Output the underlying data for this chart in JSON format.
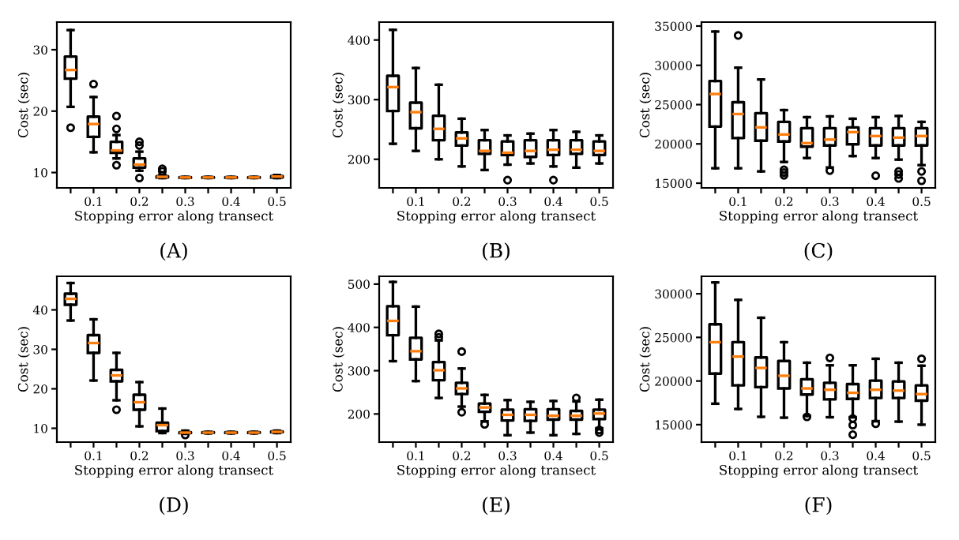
{
  "chart_data": [
    {
      "type": "box",
      "title": "(A)",
      "xlabel": "Stopping error along transect",
      "ylabel": "Cost (sec)",
      "categories": [
        null,
        "0.1",
        null,
        "0.2",
        null,
        "0.3",
        null,
        "0.4",
        null,
        "0.5"
      ],
      "ylim": [
        7.5,
        34.5
      ],
      "yticks": [
        10,
        20,
        30
      ],
      "boxes": [
        {
          "low": 20.7,
          "q1": 25.3,
          "median": 26.7,
          "q3": 28.9,
          "high": 33.2,
          "outliers": [
            17.3
          ]
        },
        {
          "low": 13.3,
          "q1": 15.8,
          "median": 17.9,
          "q3": 19.1,
          "high": 22.3,
          "outliers": [
            24.4
          ]
        },
        {
          "low": 12.3,
          "q1": 13.2,
          "median": 13.6,
          "q3": 15.0,
          "high": 16.1,
          "outliers": [
            19.2,
            17.1,
            11.2
          ]
        },
        {
          "low": 10.3,
          "q1": 10.8,
          "median": 11.3,
          "q3": 12.3,
          "high": 13.4,
          "outliers": [
            15.0,
            14.4,
            9.1
          ]
        },
        {
          "low": 9.1,
          "q1": 9.2,
          "median": 9.3,
          "q3": 9.4,
          "high": 9.6,
          "outliers": [
            10.6,
            10.2
          ]
        },
        {
          "low": 9.1,
          "q1": 9.15,
          "median": 9.2,
          "q3": 9.25,
          "high": 9.3
        },
        {
          "low": 9.1,
          "q1": 9.15,
          "median": 9.2,
          "q3": 9.25,
          "high": 9.3
        },
        {
          "low": 9.1,
          "q1": 9.15,
          "median": 9.2,
          "q3": 9.25,
          "high": 9.3
        },
        {
          "low": 9.1,
          "q1": 9.15,
          "median": 9.2,
          "q3": 9.25,
          "high": 9.3
        },
        {
          "low": 9.1,
          "q1": 9.2,
          "median": 9.35,
          "q3": 9.45,
          "high": 9.6
        }
      ]
    },
    {
      "type": "box",
      "title": "(B)",
      "xlabel": "Stopping error along transect",
      "ylabel": "Cost (sec)",
      "categories": [
        null,
        "0.1",
        null,
        "0.2",
        null,
        "0.3",
        null,
        "0.4",
        null,
        "0.5"
      ],
      "ylim": [
        152,
        430
      ],
      "yticks": [
        200,
        300,
        400
      ],
      "boxes": [
        {
          "low": 226,
          "q1": 281,
          "median": 321,
          "q3": 340,
          "high": 417
        },
        {
          "low": 214,
          "q1": 252,
          "median": 279,
          "q3": 295,
          "high": 353
        },
        {
          "low": 200,
          "q1": 232,
          "median": 251,
          "q3": 273,
          "high": 325
        },
        {
          "low": 188,
          "q1": 223,
          "median": 235,
          "q3": 245,
          "high": 268
        },
        {
          "low": 182,
          "q1": 209,
          "median": 214,
          "q3": 232,
          "high": 249
        },
        {
          "low": 191,
          "q1": 207,
          "median": 211,
          "q3": 230,
          "high": 240,
          "outliers": [
            165
          ]
        },
        {
          "low": 193,
          "q1": 204,
          "median": 214,
          "q3": 232,
          "high": 243
        },
        {
          "low": 188,
          "q1": 207,
          "median": 216,
          "q3": 232,
          "high": 249,
          "outliers": [
            165
          ]
        },
        {
          "low": 186,
          "q1": 209,
          "median": 216,
          "q3": 232,
          "high": 246
        },
        {
          "low": 193,
          "q1": 207,
          "median": 214,
          "q3": 230,
          "high": 240
        }
      ]
    },
    {
      "type": "box",
      "title": "(C)",
      "xlabel": "Stopping error along transect",
      "ylabel": "Cost (sec)",
      "categories": [
        null,
        "0.1",
        null,
        "0.2",
        null,
        "0.3",
        null,
        "0.4",
        null,
        "0.5"
      ],
      "ylim": [
        14400,
        35500
      ],
      "yticks": [
        15000,
        20000,
        25000,
        30000,
        35000
      ],
      "boxes": [
        {
          "low": 16900,
          "q1": 22200,
          "median": 26350,
          "q3": 28000,
          "high": 34300
        },
        {
          "low": 16900,
          "q1": 20750,
          "median": 23800,
          "q3": 25300,
          "high": 29700,
          "outliers": [
            33800
          ]
        },
        {
          "low": 16500,
          "q1": 20400,
          "median": 22100,
          "q3": 23900,
          "high": 28200
        },
        {
          "low": 17700,
          "q1": 20300,
          "median": 21200,
          "q3": 22800,
          "high": 24300,
          "outliers": [
            16700,
            16350,
            16000
          ]
        },
        {
          "low": 18200,
          "q1": 19650,
          "median": 20100,
          "q3": 22000,
          "high": 23400
        },
        {
          "low": 17000,
          "q1": 19800,
          "median": 20550,
          "q3": 22000,
          "high": 23500,
          "outliers": [
            16600
          ]
        },
        {
          "low": 18450,
          "q1": 19950,
          "median": 21500,
          "q3": 22100,
          "high": 23200
        },
        {
          "low": 18200,
          "q1": 19800,
          "median": 21000,
          "q3": 22000,
          "high": 23400,
          "outliers": [
            15950
          ]
        },
        {
          "low": 18000,
          "q1": 19800,
          "median": 20800,
          "q3": 22000,
          "high": 23550,
          "outliers": [
            16500,
            16100,
            15600
          ]
        },
        {
          "low": 17300,
          "q1": 19800,
          "median": 21000,
          "q3": 22000,
          "high": 22800,
          "outliers": [
            16500,
            15300
          ]
        }
      ]
    },
    {
      "type": "box",
      "title": "(D)",
      "xlabel": "Stopping error along transect",
      "ylabel": "Cost (sec)",
      "categories": [
        null,
        "0.1",
        null,
        "0.2",
        null,
        "0.3",
        null,
        "0.4",
        null,
        "0.5"
      ],
      "ylim": [
        6.5,
        48.5
      ],
      "yticks": [
        10,
        20,
        30,
        40
      ],
      "boxes": [
        {
          "low": 37.3,
          "q1": 41.3,
          "median": 42.8,
          "q3": 44.1,
          "high": 46.8
        },
        {
          "low": 22.1,
          "q1": 29.1,
          "median": 31.6,
          "q3": 33.6,
          "high": 37.6
        },
        {
          "low": 17.1,
          "q1": 21.9,
          "median": 23.4,
          "q3": 24.8,
          "high": 29.1,
          "outliers": [
            14.7
          ]
        },
        {
          "low": 10.5,
          "q1": 14.7,
          "median": 16.6,
          "q3": 18.5,
          "high": 21.7
        },
        {
          "low": 8.8,
          "q1": 9.3,
          "median": 10.8,
          "q3": 11.4,
          "high": 15.0
        },
        {
          "low": 8.6,
          "q1": 8.8,
          "median": 8.9,
          "q3": 9.0,
          "high": 9.4,
          "outliers": [
            8.3
          ]
        },
        {
          "low": 8.7,
          "q1": 8.85,
          "median": 8.9,
          "q3": 9.0,
          "high": 9.1
        },
        {
          "low": 8.7,
          "q1": 8.85,
          "median": 8.9,
          "q3": 9.0,
          "high": 9.1
        },
        {
          "low": 8.7,
          "q1": 8.85,
          "median": 8.9,
          "q3": 9.0,
          "high": 9.1
        },
        {
          "low": 8.8,
          "q1": 9.0,
          "median": 9.1,
          "q3": 9.2,
          "high": 9.4
        }
      ]
    },
    {
      "type": "box",
      "title": "(E)",
      "xlabel": "Stopping error along transect",
      "ylabel": "Cost (sec)",
      "categories": [
        null,
        "0.1",
        null,
        "0.2",
        null,
        "0.3",
        null,
        "0.4",
        null,
        "0.5"
      ],
      "ylim": [
        135,
        518
      ],
      "yticks": [
        200,
        300,
        400,
        500
      ],
      "boxes": [
        {
          "low": 322,
          "q1": 382,
          "median": 415,
          "q3": 449,
          "high": 505
        },
        {
          "low": 276,
          "q1": 326,
          "median": 345,
          "q3": 376,
          "high": 448
        },
        {
          "low": 237,
          "q1": 278,
          "median": 301,
          "q3": 320,
          "high": 370,
          "outliers": [
            385,
            377
          ]
        },
        {
          "low": 217,
          "q1": 246,
          "median": 259,
          "q3": 272,
          "high": 305,
          "outliers": [
            344,
            204
          ]
        },
        {
          "low": 183,
          "q1": 205,
          "median": 215,
          "q3": 224,
          "high": 244,
          "outliers": [
            176
          ]
        },
        {
          "low": 151,
          "q1": 185,
          "median": 198,
          "q3": 210,
          "high": 232
        },
        {
          "low": 157,
          "q1": 184,
          "median": 198,
          "q3": 211,
          "high": 228
        },
        {
          "low": 151,
          "q1": 187,
          "median": 196,
          "q3": 211,
          "high": 230
        },
        {
          "low": 154,
          "q1": 187,
          "median": 196,
          "q3": 207,
          "high": 229,
          "outliers": [
            237
          ]
        },
        {
          "low": 167,
          "q1": 188,
          "median": 201,
          "q3": 210,
          "high": 233,
          "outliers": [
            163,
            157
          ]
        }
      ]
    },
    {
      "type": "box",
      "title": "(F)",
      "xlabel": "Stopping error along transect",
      "ylabel": "Cost (sec)",
      "categories": [
        null,
        "0.1",
        null,
        "0.2",
        null,
        "0.3",
        null,
        "0.4",
        null,
        "0.5"
      ],
      "ylim": [
        13000,
        32000
      ],
      "yticks": [
        15000,
        20000,
        25000,
        30000
      ],
      "boxes": [
        {
          "low": 17400,
          "q1": 20850,
          "median": 24450,
          "q3": 26500,
          "high": 31300
        },
        {
          "low": 16800,
          "q1": 19500,
          "median": 22800,
          "q3": 24450,
          "high": 29300
        },
        {
          "low": 15900,
          "q1": 19300,
          "median": 21500,
          "q3": 22700,
          "high": 27250
        },
        {
          "low": 15800,
          "q1": 19150,
          "median": 20600,
          "q3": 22300,
          "high": 24450
        },
        {
          "low": 16000,
          "q1": 18450,
          "median": 19150,
          "q3": 20200,
          "high": 22100,
          "outliers": [
            15900
          ]
        },
        {
          "low": 15850,
          "q1": 17900,
          "median": 19000,
          "q3": 19800,
          "high": 21800,
          "outliers": [
            22650
          ]
        },
        {
          "low": 15850,
          "q1": 17950,
          "median": 18650,
          "q3": 19650,
          "high": 21800,
          "outliers": [
            15700,
            14950,
            13850
          ]
        },
        {
          "low": 15400,
          "q1": 18050,
          "median": 19000,
          "q3": 20050,
          "high": 22550,
          "outliers": [
            15100
          ]
        },
        {
          "low": 15350,
          "q1": 18050,
          "median": 18900,
          "q3": 19950,
          "high": 22100
        },
        {
          "low": 15000,
          "q1": 17750,
          "median": 18500,
          "q3": 19500,
          "high": 21750,
          "outliers": [
            22550
          ]
        }
      ]
    }
  ]
}
